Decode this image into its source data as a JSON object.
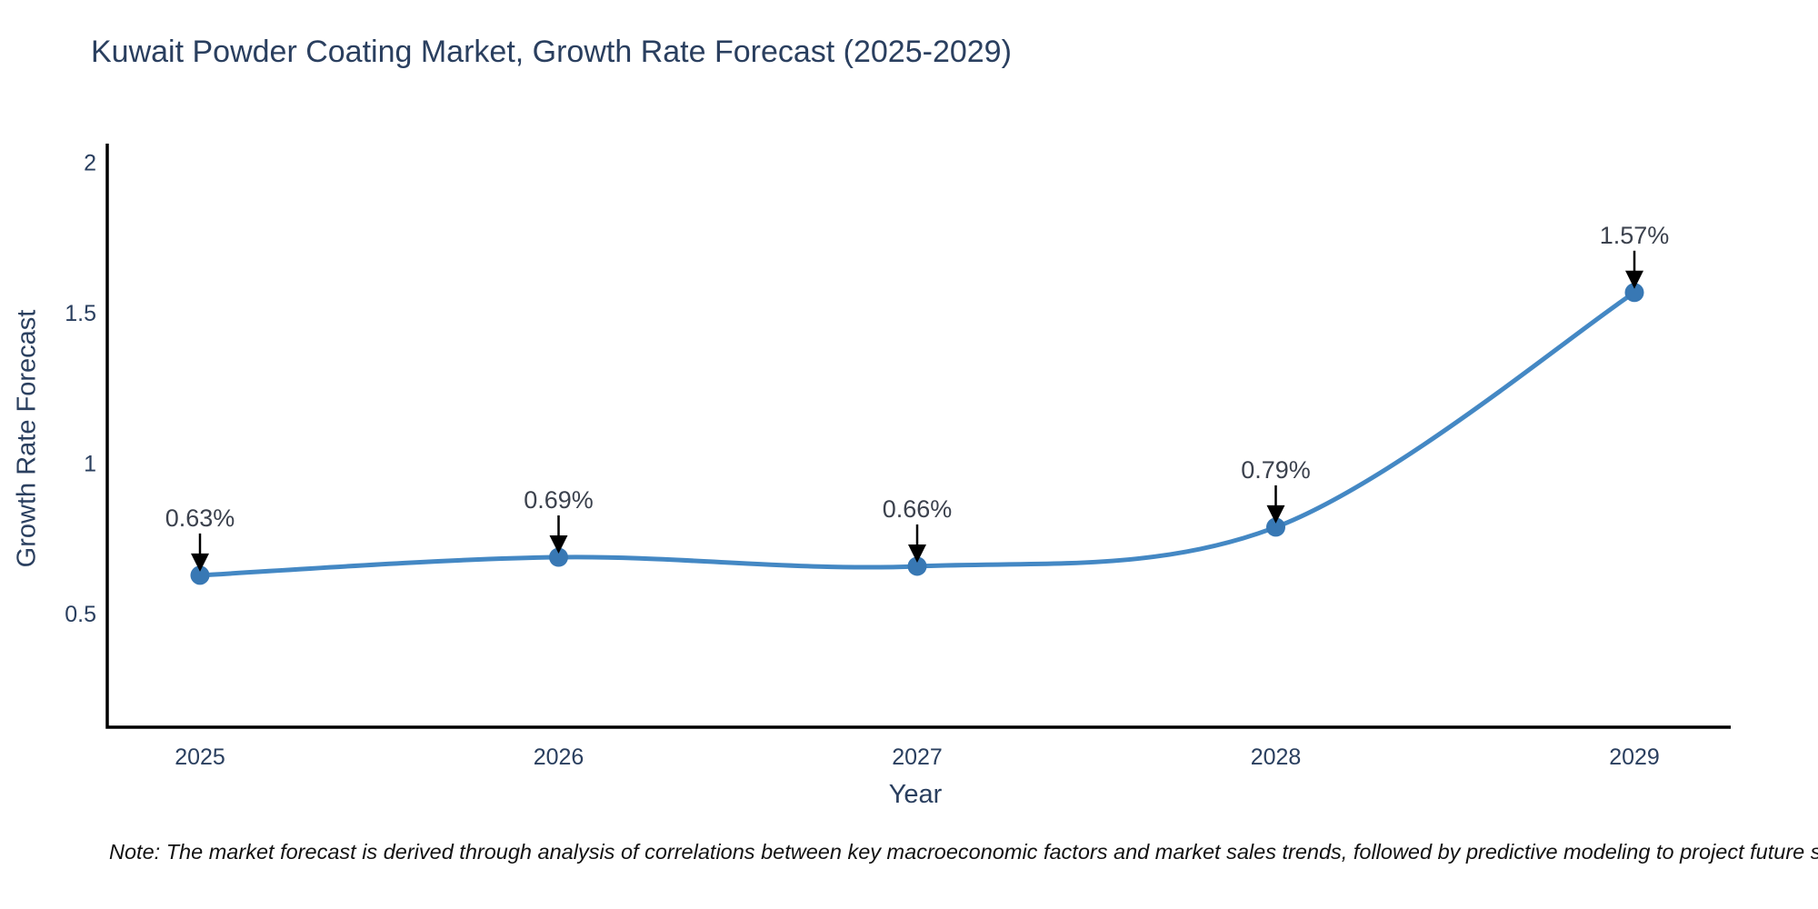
{
  "header": {
    "title": "Kuwait Powder Coating Market, Growth Rate Forecast (2025-2029)"
  },
  "footnote": {
    "text": "Note: The market forecast is derived through analysis of correlations between key macroeconomic factors and market sales trends, followed by predictive modeling to project future sales"
  },
  "chart_data": {
    "type": "line",
    "title": "Kuwait Powder Coating Market, Growth Rate Forecast (2025-2029)",
    "xlabel": "Year",
    "ylabel": "Growth Rate Forecast",
    "categories": [
      "2025",
      "2026",
      "2027",
      "2028",
      "2029"
    ],
    "values": [
      0.63,
      0.69,
      0.66,
      0.79,
      1.57
    ],
    "point_labels": [
      "0.63%",
      "0.69%",
      "0.66%",
      "0.79%",
      "1.57%"
    ],
    "yticks": [
      "0.5",
      "1",
      "1.5",
      "2"
    ],
    "ytick_values": [
      0.5,
      1,
      1.5,
      2
    ],
    "ylim": [
      0.125,
      2.065
    ],
    "grid": false,
    "legend_position": "none",
    "line_shape": "spline",
    "annotation_arrows": true,
    "colors": {
      "line": "#4488c4",
      "marker": "#3878b4",
      "arrow": "#000000",
      "axis": "#000000",
      "tick_text": "#2a3f5f",
      "annotation_text": "#3b414d",
      "title_text": "#2a3f5f"
    }
  }
}
